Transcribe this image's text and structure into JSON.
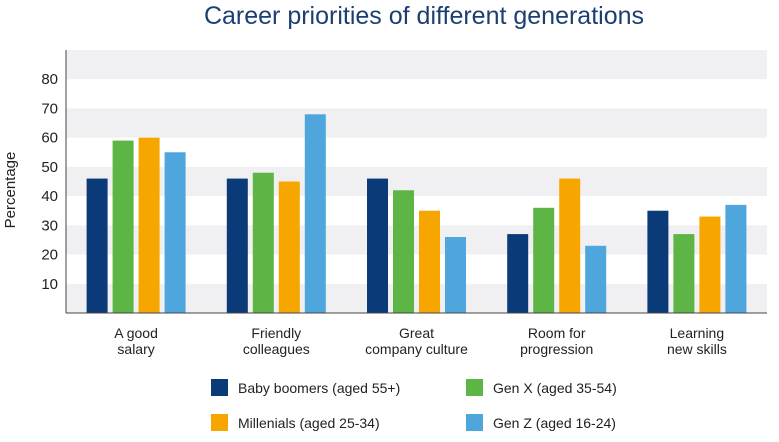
{
  "chart_data": {
    "type": "bar",
    "title": "Career priorities of different generations",
    "xlabel": "",
    "ylabel": "Percentage",
    "ylim": [
      0,
      90
    ],
    "yticks": [
      10,
      20,
      30,
      40,
      50,
      60,
      70,
      80
    ],
    "grid": "alternating horizontal bands",
    "categories": [
      [
        "A good",
        "salary"
      ],
      [
        "Friendly",
        "colleagues"
      ],
      [
        "Great",
        "company culture"
      ],
      [
        "Room for",
        "progression"
      ],
      [
        "Learning",
        "new skills"
      ]
    ],
    "series": [
      {
        "name": "Baby boomers (aged 55+)",
        "color": "#0b3a78",
        "values": [
          46,
          46,
          46,
          27,
          35
        ]
      },
      {
        "name": "Gen X (aged 35-54)",
        "color": "#5cb544",
        "values": [
          59,
          48,
          42,
          36,
          27
        ]
      },
      {
        "name": "Millenials (aged 25-34)",
        "color": "#f7a600",
        "values": [
          60,
          45,
          35,
          46,
          33
        ]
      },
      {
        "name": "Gen Z (aged 16-24)",
        "color": "#4ea6dc",
        "values": [
          55,
          68,
          26,
          23,
          37
        ]
      }
    ],
    "legend": "bottom"
  }
}
